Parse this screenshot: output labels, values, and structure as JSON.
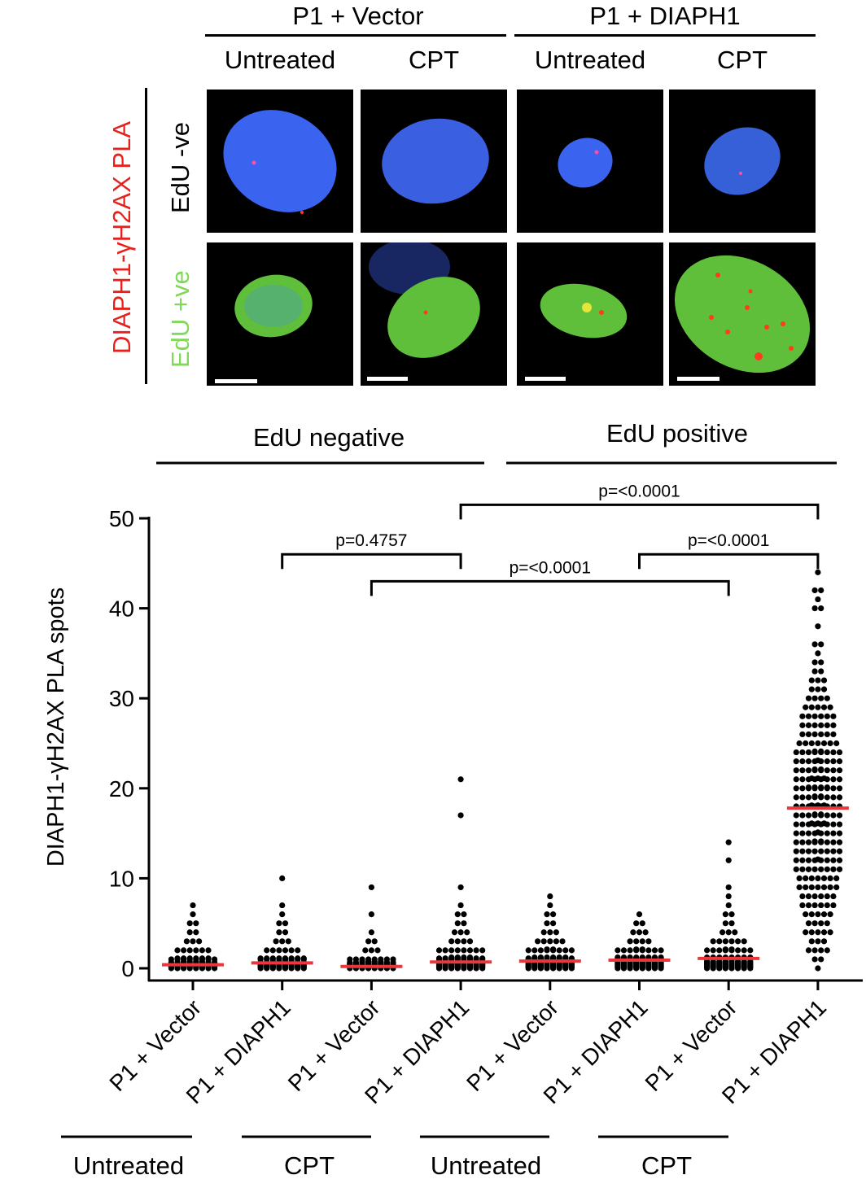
{
  "micrographs": {
    "group_headers": [
      "P1 + Vector",
      "P1 + DIAPH1"
    ],
    "column_headers": [
      "Untreated",
      "CPT",
      "Untreated",
      "CPT"
    ],
    "row_labels": [
      "EdU -ve",
      "EdU +ve"
    ],
    "side_label": "DIAPH1-γH2AX PLA",
    "colors": {
      "side_label": "#e8201c",
      "edu_neg": "#000000",
      "edu_pos": "#7ed957",
      "nucleus_blue": "#3a63f0",
      "edu_green": "#5fbf3a",
      "pla_red": "#ff3b1f"
    }
  },
  "chart_data": {
    "type": "scatter",
    "subtype": "dot-plot",
    "ylabel": "DIAPH1-γH2AX PLA spots",
    "ylim": [
      0,
      50
    ],
    "yticks": [
      0,
      10,
      20,
      30,
      40,
      50
    ],
    "top_groups": [
      "EdU negative",
      "EdU positive"
    ],
    "bottom_groups": [
      "Untreated",
      "CPT",
      "Untreated",
      "CPT"
    ],
    "categories": [
      "P1 + Vector",
      "P1 + DIAPH1",
      "P1 + Vector",
      "P1 + DIAPH1",
      "P1 + Vector",
      "P1 + DIAPH1",
      "P1 + Vector",
      "P1 + DIAPH1"
    ],
    "means": [
      0.4,
      0.6,
      0.2,
      0.7,
      0.8,
      0.9,
      1.1,
      17.8
    ],
    "mean_line_color": "#e8383d",
    "dot_color": "#000000",
    "distributions": [
      {
        "counts": {
          "0": 60,
          "1": 14,
          "2": 6,
          "3": 3,
          "4": 2,
          "5": 2,
          "6": 1,
          "7": 1
        }
      },
      {
        "counts": {
          "0": 60,
          "1": 16,
          "2": 6,
          "3": 3,
          "4": 2,
          "5": 2,
          "6": 1,
          "7": 1,
          "10": 1
        }
      },
      {
        "counts": {
          "0": 60,
          "1": 8,
          "2": 3,
          "3": 2,
          "4": 1,
          "6": 1,
          "9": 1
        }
      },
      {
        "counts": {
          "0": 64,
          "1": 20,
          "2": 8,
          "3": 4,
          "4": 3,
          "5": 2,
          "6": 2,
          "7": 1,
          "9": 1,
          "17": 1,
          "21": 1
        }
      },
      {
        "counts": {
          "0": 64,
          "1": 22,
          "2": 10,
          "3": 5,
          "4": 3,
          "5": 2,
          "6": 2,
          "7": 1,
          "8": 1
        }
      },
      {
        "counts": {
          "0": 64,
          "1": 24,
          "2": 10,
          "3": 4,
          "4": 3,
          "5": 2,
          "6": 1
        }
      },
      {
        "counts": {
          "0": 64,
          "1": 24,
          "2": 10,
          "3": 6,
          "4": 3,
          "5": 2,
          "6": 2,
          "7": 1,
          "8": 1,
          "9": 1,
          "12": 1,
          "14": 1
        }
      },
      {
        "counts": {
          "0": 1,
          "1": 2,
          "2": 4,
          "3": 3,
          "4": 5,
          "5": 4,
          "6": 5,
          "7": 6,
          "8": 6,
          "9": 7,
          "10": 7,
          "11": 8,
          "12": 9,
          "13": 8,
          "14": 10,
          "15": 9,
          "16": 11,
          "17": 10,
          "18": 11,
          "19": 10,
          "20": 12,
          "21": 11,
          "22": 10,
          "23": 9,
          "24": 10,
          "25": 7,
          "26": 6,
          "27": 6,
          "28": 6,
          "29": 5,
          "30": 4,
          "31": 3,
          "32": 3,
          "33": 2,
          "34": 2,
          "35": 1,
          "36": 2,
          "38": 1,
          "40": 2,
          "41": 1,
          "42": 2,
          "44": 1
        }
      }
    ],
    "comparisons": [
      {
        "from": 1,
        "to": 3,
        "label": "p=0.4757",
        "y": 46
      },
      {
        "from": 2,
        "to": 6,
        "label": "p=<0.0001",
        "y": 43
      },
      {
        "from": 3,
        "to": 7,
        "label": "p=<0.0001",
        "y": 51.5
      },
      {
        "from": 5,
        "to": 7,
        "label": "p=<0.0001",
        "y": 46
      }
    ]
  }
}
